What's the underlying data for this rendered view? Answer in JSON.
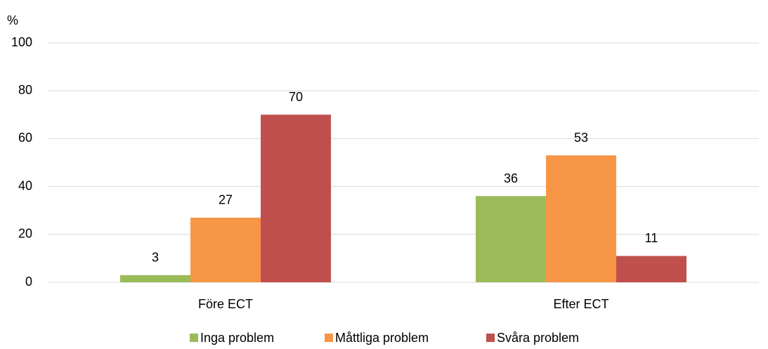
{
  "chart_data": {
    "type": "bar",
    "y_label": "%",
    "categories": [
      "Före ECT",
      "Efter ECT"
    ],
    "series": [
      {
        "name": "Inga problem",
        "color": "#9bbb59",
        "values": [
          3,
          36
        ]
      },
      {
        "name": "Måttliga problem",
        "color": "#f79646",
        "values": [
          27,
          53
        ]
      },
      {
        "name": "Svåra problem",
        "color": "#c0504d",
        "values": [
          70,
          11
        ]
      }
    ],
    "ylim": [
      0,
      100
    ],
    "yticks": [
      0,
      20,
      40,
      60,
      80,
      100
    ],
    "grid": true,
    "legend": "bottom"
  }
}
